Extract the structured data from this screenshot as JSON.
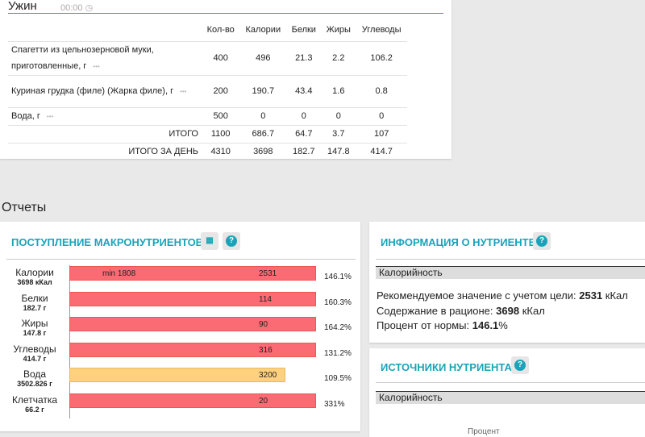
{
  "meal": {
    "title": "Ужин",
    "time": "00:00",
    "columns": [
      "Кол-во",
      "Калории",
      "Белки",
      "Жиры",
      "Углеводы"
    ],
    "rows": [
      {
        "name": "Спагетти из цельнозерновой муки, приготовленные, г",
        "values": [
          400,
          496,
          21.3,
          2.2,
          106.2
        ]
      },
      {
        "name": "Куриная грудка (филе) (Жарка филе), г",
        "values": [
          200,
          190.7,
          43.4,
          1.6,
          0.8
        ]
      },
      {
        "name": "Вода, г",
        "values": [
          500,
          0,
          0,
          0,
          0
        ]
      }
    ],
    "total": {
      "label": "ИТОГО",
      "values": [
        1100,
        686.7,
        64.7,
        3.7,
        107
      ]
    },
    "day_total": {
      "label": "ИТОГО ЗА ДЕНЬ",
      "values": [
        4310,
        3698,
        182.7,
        147.8,
        414.7
      ]
    }
  },
  "reports": {
    "title": "Отчеты",
    "macro": {
      "title": "ПОСТУПЛЕНИЕ МАКРОНУТРИЕНТОВ",
      "min_label": "min 1808",
      "rows": [
        {
          "name": "Калории",
          "amount": "3698 кКал",
          "value": 2531,
          "percent": "146.1%"
        },
        {
          "name": "Белки",
          "amount": "182.7 г",
          "value": 114,
          "percent": "160.3%"
        },
        {
          "name": "Жиры",
          "amount": "147.8 г",
          "value": 90,
          "percent": "164.2%"
        },
        {
          "name": "Углеводы",
          "amount": "414.7 г",
          "value": 316,
          "percent": "131.2%"
        },
        {
          "name": "Вода",
          "amount": "3502.826 г",
          "value": 3200,
          "percent": "109.5%"
        },
        {
          "name": "Клетчатка",
          "amount": "66.2 г",
          "value": 20,
          "percent": "331%"
        }
      ]
    },
    "info": {
      "title": "ИНФОРМАЦИЯ О НУТРИЕНТЕ",
      "nutrient": "Калорийность",
      "lines": [
        {
          "label": "Рекомендуемое значение с учетом цели:",
          "value": 2531,
          "unit": "кКал"
        },
        {
          "label": "Содержание в рационе:",
          "value": 3698,
          "unit": "кКал"
        },
        {
          "label": "Процент от нормы:",
          "value": 146.1,
          "unit": "%"
        }
      ]
    },
    "sources": {
      "title": "ИСТОЧНИКИ НУТРИЕНТА",
      "nutrient": "Калорийность",
      "column": "Процент"
    }
  }
}
